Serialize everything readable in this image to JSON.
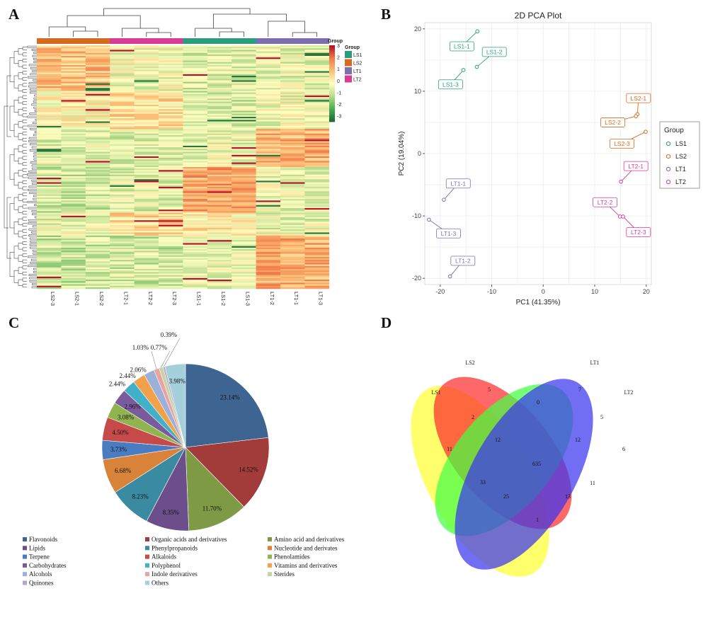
{
  "panels": {
    "a": "A",
    "b": "B",
    "c": "C",
    "d": "D"
  },
  "chart_data": [
    {
      "type": "heatmap",
      "columns": [
        "LS2-3",
        "LS2-1",
        "LS2-2",
        "LT2-1",
        "LT2-2",
        "LT2-3",
        "LS1-1",
        "LS1-2",
        "LS1-3",
        "LT1-2",
        "LT1-1",
        "LT1-3"
      ],
      "column_groups": [
        "LS2",
        "LS2",
        "LS2",
        "LT2",
        "LT2",
        "LT2",
        "LS1",
        "LS1",
        "LS1",
        "LT1",
        "LT1",
        "LT1"
      ],
      "scale_title": "Group",
      "scale_ticks": [
        "3",
        "2",
        "1",
        "0",
        "-1",
        "-2",
        "-3"
      ],
      "legend_title": "Group",
      "legend": [
        {
          "label": "LS1",
          "color": "#2a9d7c"
        },
        {
          "label": "LS2",
          "color": "#d66a1e"
        },
        {
          "label": "LT1",
          "color": "#7c6fb0"
        },
        {
          "label": "LT2",
          "color": "#d83c97"
        }
      ],
      "group_colors": {
        "LS1": "#2a9d7c",
        "LS2": "#d66a1e",
        "LT1": "#7c6fb0",
        "LT2": "#d83c97"
      },
      "color_scale": [
        "#1b6b3a",
        "#4caf50",
        "#b9dc8e",
        "#ffffc0",
        "#fcc078",
        "#f27d4a",
        "#b5122e"
      ]
    },
    {
      "type": "scatter",
      "title": "2D PCA Plot",
      "xlabel": "PC1 (41.35%)",
      "ylabel": "PC2 (19.04%)",
      "xlim": [
        -23,
        21
      ],
      "ylim": [
        -21,
        21
      ],
      "xticks": [
        -20,
        -10,
        0,
        10,
        20
      ],
      "yticks": [
        -20,
        -10,
        0,
        10,
        20
      ],
      "legend_title": "Group",
      "series": [
        {
          "name": "LS1",
          "color": "#2a9d7c",
          "points": [
            {
              "label": "LS1-1",
              "x": -12.8,
              "y": 19.6,
              "lx": -15.8,
              "ly": 17.2
            },
            {
              "label": "LS1-2",
              "x": -12.9,
              "y": 13.9,
              "lx": -9.5,
              "ly": 16.3
            },
            {
              "label": "LS1-3",
              "x": -15.5,
              "y": 13.4,
              "lx": -18.0,
              "ly": 11.1
            }
          ]
        },
        {
          "name": "LS2",
          "color": "#d66a1e",
          "points": [
            {
              "label": "LS2-1",
              "x": 18.3,
              "y": 6.3,
              "lx": 18.5,
              "ly": 8.9
            },
            {
              "label": "LS2-2",
              "x": 18.0,
              "y": 6.0,
              "lx": 13.5,
              "ly": 5.0
            },
            {
              "label": "LS2-3",
              "x": 19.9,
              "y": 3.5,
              "lx": 15.3,
              "ly": 1.6
            }
          ]
        },
        {
          "name": "LT1",
          "color": "#7c6fb0",
          "points": [
            {
              "label": "LT1-1",
              "x": -19.3,
              "y": -7.4,
              "lx": -16.5,
              "ly": -4.8
            },
            {
              "label": "LT1-3",
              "x": -22.2,
              "y": -10.6,
              "lx": -18.4,
              "ly": -12.8
            },
            {
              "label": "LT1-2",
              "x": -18.1,
              "y": -19.7,
              "lx": -15.6,
              "ly": -17.2
            }
          ]
        },
        {
          "name": "LT2",
          "color": "#d83c97",
          "points": [
            {
              "label": "LT2-1",
              "x": 15.1,
              "y": -4.5,
              "lx": 18.0,
              "ly": -2.0
            },
            {
              "label": "LT2-2",
              "x": 14.9,
              "y": -10.1,
              "lx": 12.0,
              "ly": -7.8
            },
            {
              "label": "LT2-3",
              "x": 15.5,
              "y": -10.1,
              "lx": 18.5,
              "ly": -12.6
            }
          ]
        }
      ]
    },
    {
      "type": "pie",
      "slices": [
        {
          "label": "Flavonoids",
          "value": 23.14,
          "display": "23.14%",
          "color": "#3e6491"
        },
        {
          "label": "Organic acids and derivatives",
          "value": 14.52,
          "display": "14.52%",
          "color": "#a13c3b"
        },
        {
          "label": "Amino acid and derivatives",
          "value": 11.7,
          "display": "11.70%",
          "color": "#7f9a45"
        },
        {
          "label": "Lipids",
          "value": 8.35,
          "display": "8.35%",
          "color": "#6b4e8a"
        },
        {
          "label": "Phenylpropanoids",
          "value": 8.23,
          "display": "8.23%",
          "color": "#3a8aa1"
        },
        {
          "label": "Nucleotide and derivates",
          "value": 6.68,
          "display": "6.68%",
          "color": "#d8823a"
        },
        {
          "label": "Terpene",
          "value": 3.73,
          "display": "3.73%",
          "color": "#4a7cc1"
        },
        {
          "label": "Alkaloids",
          "value": 4.5,
          "display": "4.50%",
          "color": "#c64a4a"
        },
        {
          "label": "Phenolamides",
          "value": 3.08,
          "display": "3.08%",
          "color": "#8fb450"
        },
        {
          "label": "Carbohydrates",
          "value": 2.96,
          "display": "2.96%",
          "color": "#7a5b9c"
        },
        {
          "label": "Polyphenol",
          "value": 2.44,
          "display": "2.44%",
          "color": "#41b1c9"
        },
        {
          "label": "Vitamins and derivatives",
          "value": 2.44,
          "display": "2.44%",
          "color": "#f2a14a"
        },
        {
          "label": "Alcohols",
          "value": 2.06,
          "display": "2.06%",
          "color": "#9db0d8"
        },
        {
          "label": "Indole derivatives",
          "value": 1.03,
          "display": "1.03%",
          "color": "#e9a3a2"
        },
        {
          "label": "Sterides",
          "value": 0.77,
          "display": "0.77%",
          "color": "#c4d5a0"
        },
        {
          "label": "Quinones",
          "value": 0.39,
          "display": "0.39%",
          "color": "#b4a7c9"
        },
        {
          "label": "Others",
          "value": 3.98,
          "display": "3.98%",
          "color": "#a6cfdc"
        }
      ]
    },
    {
      "type": "venn",
      "sets": [
        {
          "label": "LS1",
          "color": "#ffff33"
        },
        {
          "label": "LS2",
          "color": "#ff2e2e"
        },
        {
          "label": "LT1",
          "color": "#44ff44"
        },
        {
          "label": "LT2",
          "color": "#3b36f0"
        }
      ],
      "regions": [
        {
          "sets": "LS1",
          "value": "11"
        },
        {
          "sets": "LS2",
          "value": "5"
        },
        {
          "sets": "LT1",
          "value": "7"
        },
        {
          "sets": "LT2",
          "value": "6"
        },
        {
          "sets": "LS1&LS2",
          "value": "2"
        },
        {
          "sets": "LS2&LT1",
          "value": "0"
        },
        {
          "sets": "LT1&LT2",
          "value": "5"
        },
        {
          "sets": "LS1&LS2&LT1",
          "value": "12"
        },
        {
          "sets": "LS2&LT1&LT2",
          "value": "12"
        },
        {
          "sets": "LS1&LS2&LT1&LT2",
          "value": "635"
        },
        {
          "sets": "LS1&LT1",
          "value": "33"
        },
        {
          "sets": "LS2&LT2",
          "value": "11"
        },
        {
          "sets": "LS1&LT1&LT2",
          "value": "25"
        },
        {
          "sets": "LS1&LS2&LT2",
          "value": "13"
        },
        {
          "sets": "LS1&LT2",
          "value": "1"
        }
      ]
    }
  ]
}
